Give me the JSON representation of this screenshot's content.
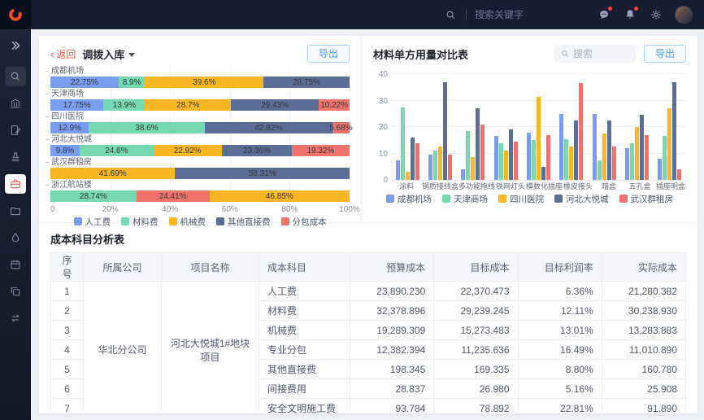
{
  "topbar": {
    "search_placeholder": "搜索关键字",
    "icons": [
      {
        "name": "message",
        "badge": true
      },
      {
        "name": "bell",
        "badge": true
      },
      {
        "name": "gear",
        "badge": false
      }
    ]
  },
  "sidebar": {
    "icons": [
      "expand",
      "search",
      "bank",
      "document-edit",
      "stamp",
      "briefcase",
      "folder",
      "water-drop",
      "calendar",
      "copy",
      "transfer"
    ],
    "active_index": 5
  },
  "left_panel": {
    "back_label": "返回",
    "title": "调拨入库",
    "export_label": "导出"
  },
  "right_panel": {
    "title": "材料单方用量对比表",
    "search_placeholder": "搜索",
    "export_label": "导出"
  },
  "colors": {
    "blue": "#7A9DF0",
    "green": "#76D9B1",
    "yellow": "#FBB624",
    "slate": "#5A6E96",
    "red": "#F0726C",
    "accent": "#E8604C",
    "link": "#4E9DF9"
  },
  "chart_data": [
    {
      "type": "bar",
      "subtype": "horizontal-stacked-percent",
      "legend": [
        "人工费",
        "材料费",
        "机械费",
        "其他直接费",
        "分包成本"
      ],
      "legend_colors": [
        "blue",
        "green",
        "yellow",
        "slate",
        "red"
      ],
      "x_ticks": [
        "0",
        "20%",
        "40%",
        "60%",
        "80%",
        "100%"
      ],
      "xlim": [
        0,
        100
      ],
      "rows": [
        {
          "label": "成都机场",
          "segments": [
            {
              "series": "人工费",
              "color": "blue",
              "value": 22.75
            },
            {
              "series": "材料费",
              "color": "green",
              "value": 8.9
            },
            {
              "series": "机械费",
              "color": "yellow",
              "value": 39.6
            },
            {
              "series": "其他直接费",
              "color": "slate",
              "value": 28.75
            }
          ]
        },
        {
          "label": "天津商场",
          "segments": [
            {
              "series": "人工费",
              "color": "blue",
              "value": 17.75
            },
            {
              "series": "材料费",
              "color": "green",
              "value": 13.9
            },
            {
              "series": "机械费",
              "color": "yellow",
              "value": 28.7
            },
            {
              "series": "其他直接费",
              "color": "slate",
              "value": 29.43
            },
            {
              "series": "分包成本",
              "color": "red",
              "value": 10.22
            }
          ]
        },
        {
          "label": "四川医院",
          "segments": [
            {
              "series": "人工费",
              "color": "blue",
              "value": 12.9
            },
            {
              "series": "材料费",
              "color": "green",
              "value": 38.6
            },
            {
              "series": "其他直接费",
              "color": "slate",
              "value": 42.82
            },
            {
              "series": "分包成本",
              "color": "red",
              "value": 5.68
            }
          ]
        },
        {
          "label": "河北大悦城",
          "segments": [
            {
              "series": "人工费",
              "color": "blue",
              "value": 9.8
            },
            {
              "series": "材料费",
              "color": "green",
              "value": 24.6
            },
            {
              "series": "机械费",
              "color": "yellow",
              "value": 22.92
            },
            {
              "series": "其他直接费",
              "color": "slate",
              "value": 23.36
            },
            {
              "series": "分包成本",
              "color": "red",
              "value": 19.32
            }
          ]
        },
        {
          "label": "武汉群租房",
          "segments": [
            {
              "series": "机械费",
              "color": "yellow",
              "value": 41.69
            },
            {
              "series": "其他直接费",
              "color": "slate",
              "value": 58.31
            }
          ]
        },
        {
          "label": "浙江航站楼",
          "segments": [
            {
              "series": "材料费",
              "color": "green",
              "value": 28.74
            },
            {
              "series": "分包成本",
              "color": "red",
              "value": 24.41
            },
            {
              "series": "机械费",
              "color": "yellow",
              "value": 46.85
            }
          ]
        }
      ]
    },
    {
      "type": "bar",
      "subtype": "vertical-grouped",
      "title": "材料单方用量对比表",
      "categories": [
        "涂料",
        "钢质接线盒",
        "多功能拖线",
        "铁网灯头",
        "模数化插座",
        "橡皮接头",
        "暗盒",
        "五孔盒",
        "插座明盒"
      ],
      "series": [
        {
          "name": "成都机场",
          "color": "blue",
          "values": [
            7.5,
            9.5,
            4,
            16.5,
            18,
            25,
            25,
            12,
            8
          ]
        },
        {
          "name": "天津商场",
          "color": "green",
          "values": [
            27.5,
            11,
            18.5,
            14,
            15,
            15.5,
            7.5,
            14,
            16.5
          ]
        },
        {
          "name": "四川医院",
          "color": "yellow",
          "values": [
            3,
            12.5,
            8.5,
            11,
            31.5,
            12.5,
            17.5,
            20,
            27
          ]
        },
        {
          "name": "河北大悦城",
          "color": "slate",
          "values": [
            16,
            37,
            27,
            19,
            5,
            22.5,
            22.5,
            24.5,
            37
          ]
        },
        {
          "name": "武汉群租房",
          "color": "red",
          "values": [
            14,
            9.5,
            21,
            14.5,
            17,
            36.5,
            12.5,
            17,
            4
          ]
        }
      ],
      "y_ticks": [
        0,
        10,
        20,
        30,
        40
      ],
      "ylim": [
        0,
        40
      ],
      "legend_position": "bottom"
    }
  ],
  "table": {
    "title": "成本科目分析表",
    "columns": [
      "序号",
      "所属公司",
      "项目名称",
      "成本科目",
      "预算成本",
      "目标成本",
      "目标利润率",
      "实际成本"
    ],
    "company": "华北分公司",
    "project": "河北大悦城1#地块项目",
    "rows": [
      {
        "no": "1",
        "subject": "人工费",
        "budget": "23,890.230",
        "target": "22,370.473",
        "margin": "6.36%",
        "actual": "21,280.382"
      },
      {
        "no": "2",
        "subject": "材料费",
        "budget": "32,378.896",
        "target": "29,239.245",
        "margin": "12.11%",
        "actual": "30,238.930"
      },
      {
        "no": "3",
        "subject": "机械费",
        "budget": "19,289.309",
        "target": "15,273.483",
        "margin": "13.01%",
        "actual": "13,283.883"
      },
      {
        "no": "4",
        "subject": "专业分包",
        "budget": "12,382.394",
        "target": "11,235.636",
        "margin": "16.49%",
        "actual": "11,010.890"
      },
      {
        "no": "5",
        "subject": "其他直接费",
        "budget": "198.345",
        "target": "169.335",
        "margin": "8.80%",
        "actual": "160.780"
      },
      {
        "no": "6",
        "subject": "间接费用",
        "budget": "28.837",
        "target": "26.980",
        "margin": "5.16%",
        "actual": "25.908"
      },
      {
        "no": "7",
        "subject": "安全文明施工费",
        "budget": "93.784",
        "target": "78.892",
        "margin": "22.81%",
        "actual": "91.890"
      }
    ]
  }
}
